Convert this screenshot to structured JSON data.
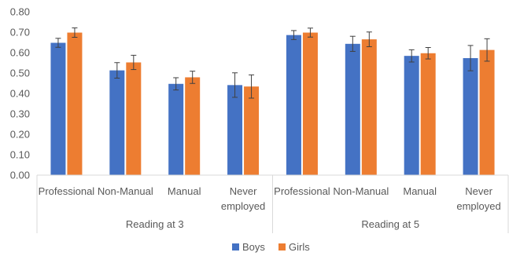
{
  "chart_data": {
    "type": "bar",
    "title": "",
    "xlabel": "",
    "ylabel": "",
    "ylim": [
      0,
      0.8
    ],
    "yticks": [
      "0.00",
      "0.10",
      "0.20",
      "0.30",
      "0.40",
      "0.50",
      "0.60",
      "0.70",
      "0.80"
    ],
    "grid": false,
    "legend_position": "bottom",
    "groups": [
      {
        "label": "Reading at 3",
        "categories": [
          [
            "Professional"
          ],
          [
            "Non-Manual"
          ],
          [
            "Manual"
          ],
          [
            "Never",
            "employed"
          ]
        ]
      },
      {
        "label": "Reading at 5",
        "categories": [
          [
            "Professional"
          ],
          [
            "Non-Manual"
          ],
          [
            "Manual"
          ],
          [
            "Never",
            "employed"
          ]
        ]
      }
    ],
    "series": [
      {
        "name": "Boys",
        "color": "#4472C4",
        "values": [
          0.648,
          0.513,
          0.447,
          0.441,
          0.686,
          0.643,
          0.584,
          0.573
        ],
        "error": [
          0.022,
          0.038,
          0.03,
          0.06,
          0.022,
          0.037,
          0.03,
          0.062
        ]
      },
      {
        "name": "Girls",
        "color": "#ED7D31",
        "values": [
          0.698,
          0.552,
          0.479,
          0.434,
          0.698,
          0.665,
          0.597,
          0.613
        ],
        "error": [
          0.023,
          0.035,
          0.03,
          0.057,
          0.022,
          0.036,
          0.028,
          0.055
        ]
      }
    ]
  }
}
